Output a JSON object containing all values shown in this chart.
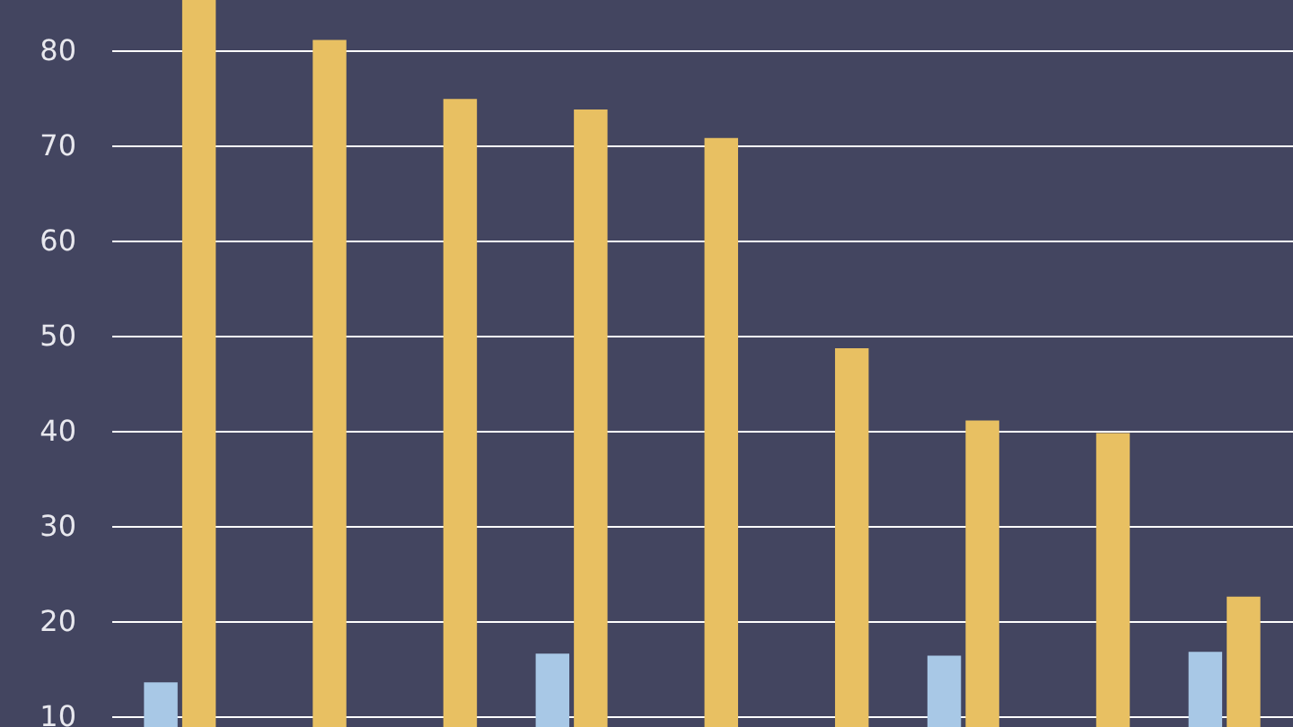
{
  "chart_data": {
    "type": "bar",
    "categories": [
      null,
      null,
      null,
      null,
      null,
      null,
      null,
      null,
      null
    ],
    "series": [
      {
        "color": "#a8c8e6",
        "values": [
          13.6,
          null,
          null,
          16.6,
          null,
          null,
          16.4,
          null,
          16.8
        ]
      },
      {
        "color": "#e8c062",
        "values": [
          85.3,
          81.1,
          74.9,
          73.8,
          70.8,
          48.7,
          41.1,
          39.8,
          22.6
        ]
      }
    ],
    "ylim": [
      8.9,
      85.3
    ],
    "yticks": [
      10,
      20,
      30,
      40,
      50,
      60,
      70,
      80
    ],
    "grid": "y",
    "tick_labels": "y"
  }
}
